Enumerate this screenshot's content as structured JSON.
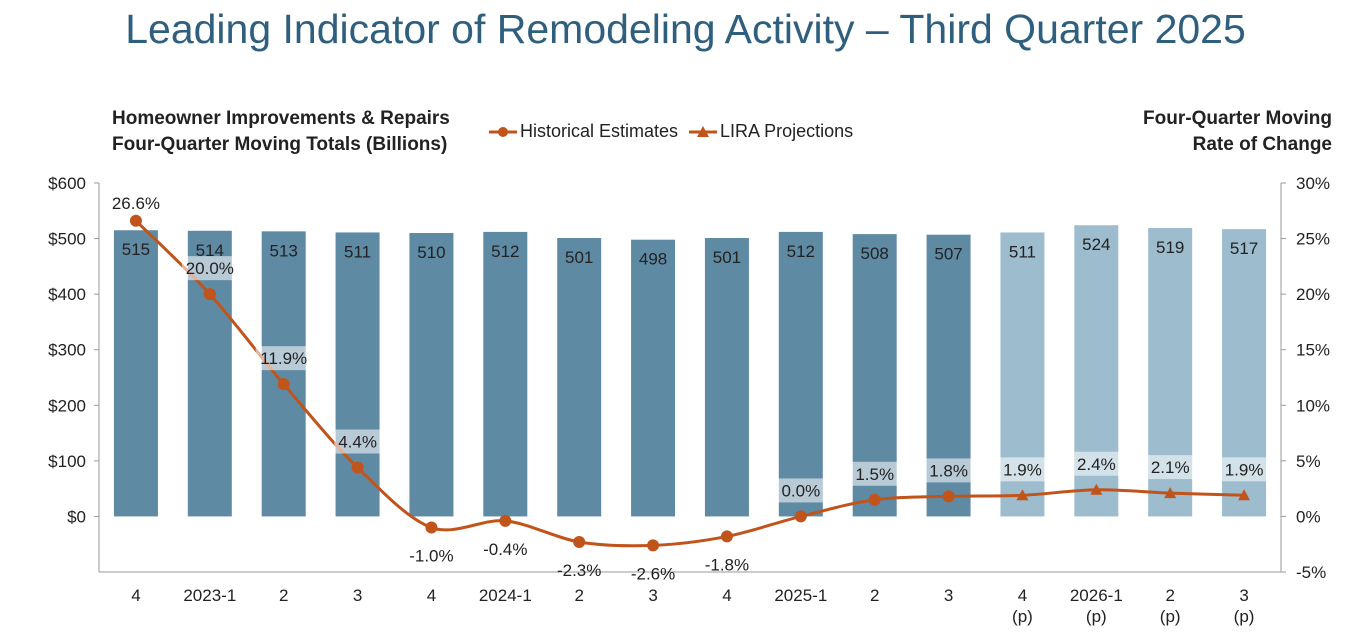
{
  "title": "Leading Indicator of Remodeling Activity – Third Quarter 2025",
  "chart_data": {
    "type": "bar",
    "y_left_label": [
      "Homeowner Improvements & Repairs",
      "Four-Quarter Moving Totals (Billions)"
    ],
    "y_right_label": [
      "Four-Quarter Moving",
      "Rate of Change"
    ],
    "categories": [
      [
        "4"
      ],
      [
        "2023-1"
      ],
      [
        "2"
      ],
      [
        "3"
      ],
      [
        "4"
      ],
      [
        "2024-1"
      ],
      [
        "2"
      ],
      [
        "3"
      ],
      [
        "4"
      ],
      [
        "2025-1"
      ],
      [
        "2"
      ],
      [
        "3"
      ],
      [
        "4",
        "(p)"
      ],
      [
        "2026-1",
        "(p)"
      ],
      [
        "2",
        "(p)"
      ],
      [
        "3",
        "(p)"
      ]
    ],
    "bars": [
      515,
      514,
      513,
      511,
      510,
      512,
      501,
      498,
      501,
      512,
      508,
      507,
      511,
      524,
      519,
      517
    ],
    "bar_labels": [
      "515",
      "514",
      "513",
      "511",
      "510",
      "512",
      "501",
      "498",
      "501",
      "512",
      "508",
      "507",
      "511",
      "524",
      "519",
      "517"
    ],
    "projected_from_index": 12,
    "rates": [
      26.6,
      20.0,
      11.9,
      4.4,
      -1.0,
      -0.4,
      -2.3,
      -2.6,
      -1.8,
      0.0,
      1.5,
      1.8,
      1.9,
      2.4,
      2.1,
      1.9
    ],
    "rate_labels": [
      "26.6%",
      "20.0%",
      "11.9%",
      "4.4%",
      "-1.0%",
      "-0.4%",
      "-2.3%",
      "-2.6%",
      "-1.8%",
      "0.0%",
      "1.5%",
      "1.8%",
      "1.9%",
      "2.4%",
      "2.1%",
      "1.9%"
    ],
    "ylim_left": [
      0,
      600
    ],
    "yticks_left": [
      "$0",
      "$100",
      "$200",
      "$300",
      "$400",
      "$500",
      "$600"
    ],
    "ylim_right": [
      -5,
      30
    ],
    "yticks_right": [
      "-5%",
      "0%",
      "5%",
      "10%",
      "15%",
      "20%",
      "25%",
      "30%"
    ],
    "series": [
      {
        "name": "Historical Estimates"
      },
      {
        "name": "LIRA Projections"
      }
    ],
    "colors": {
      "bar_historical": "#5f8aa4",
      "bar_projected": "#9dbccd",
      "line": "#c0541a",
      "title": "#2f5f7e"
    }
  }
}
